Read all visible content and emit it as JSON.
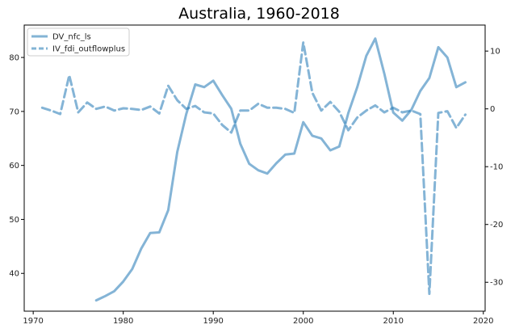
{
  "chart_data": {
    "type": "line",
    "title": "Australia, 1960-2018",
    "xlabel": "",
    "ylabel_left": "",
    "ylabel_right": "",
    "xlim": [
      1969,
      2020.2
    ],
    "ylim_left": [
      33,
      86
    ],
    "ylim_right": [
      -35,
      14.5
    ],
    "x_ticks": [
      1970,
      1980,
      1990,
      2000,
      2010,
      2020
    ],
    "y_left_ticks": [
      40,
      50,
      60,
      70,
      80
    ],
    "y_right_ticks": [
      -30,
      -20,
      -10,
      0,
      10
    ],
    "grid": false,
    "legend_position": "top-left",
    "series": [
      {
        "name": "DV_nfc_ls",
        "axis": "left",
        "style": "solid",
        "color": "#1f77b4",
        "x": [
          1977,
          1978,
          1979,
          1980,
          1981,
          1982,
          1983,
          1984,
          1985,
          1986,
          1987,
          1988,
          1989,
          1990,
          1991,
          1992,
          1993,
          1994,
          1995,
          1996,
          1997,
          1998,
          1999,
          2000,
          2001,
          2002,
          2003,
          2004,
          2005,
          2006,
          2007,
          2008,
          2009,
          2010,
          2011,
          2012,
          2013,
          2014,
          2015,
          2016,
          2017,
          2018
        ],
        "values": [
          35.0,
          35.8,
          36.7,
          38.5,
          40.8,
          44.6,
          47.5,
          47.6,
          51.7,
          62.5,
          69.5,
          75.0,
          74.5,
          75.7,
          73.0,
          70.5,
          64.0,
          60.3,
          59.1,
          58.5,
          60.4,
          62.0,
          62.2,
          68.0,
          65.5,
          65.0,
          62.8,
          63.5,
          69.7,
          74.5,
          80.3,
          83.5,
          77.0,
          69.8,
          68.3,
          70.3,
          73.8,
          76.2,
          81.9,
          80.0,
          74.5,
          75.4
        ]
      },
      {
        "name": "IV_fdi_outflowplus",
        "axis": "right",
        "style": "dashed",
        "color": "#1f77b4",
        "x": [
          1971,
          1972,
          1973,
          1974,
          1975,
          1976,
          1977,
          1978,
          1979,
          1980,
          1981,
          1982,
          1983,
          1984,
          1985,
          1986,
          1987,
          1988,
          1989,
          1990,
          1991,
          1992,
          1993,
          1994,
          1995,
          1996,
          1997,
          1998,
          1999,
          2000,
          2001,
          2002,
          2003,
          2004,
          2005,
          2006,
          2007,
          2008,
          2009,
          2010,
          2011,
          2012,
          2013,
          2014,
          2015,
          2016,
          2017,
          2018
        ],
        "values": [
          0.2,
          -0.3,
          -0.9,
          5.8,
          -0.6,
          1.1,
          0.0,
          0.4,
          -0.3,
          0.1,
          0.0,
          -0.2,
          0.4,
          -0.8,
          4.0,
          1.5,
          0.0,
          0.5,
          -0.6,
          -0.8,
          -2.8,
          -4.1,
          -0.3,
          -0.3,
          0.9,
          0.2,
          0.2,
          0.0,
          -0.7,
          11.5,
          2.8,
          -0.3,
          1.2,
          -0.5,
          -3.7,
          -1.5,
          -0.3,
          0.6,
          -0.6,
          0.2,
          -0.6,
          -0.3,
          -0.9,
          -32.0,
          -0.7,
          -0.4,
          -3.3,
          -1.0
        ]
      }
    ]
  }
}
